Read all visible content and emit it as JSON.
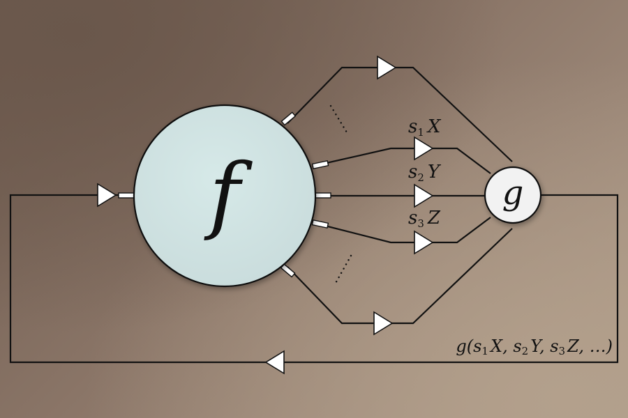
{
  "f_label": "f",
  "g_label": "g",
  "f_color": "#d1e5e5",
  "g_color": "#f2f2f2",
  "outputs": [
    {
      "s": "s",
      "sub": "1",
      "var": "X"
    },
    {
      "s": "s",
      "sub": "2",
      "var": "Y"
    },
    {
      "s": "s",
      "sub": "3",
      "var": "Z"
    }
  ],
  "feedback_label": {
    "prefix": "g(",
    "args": [
      {
        "s": "s",
        "sub": "1",
        "var": "X"
      },
      {
        "s": "s",
        "sub": "2",
        "var": "Y"
      },
      {
        "s": "s",
        "sub": "3",
        "var": "Z"
      }
    ],
    "suffix": "…)"
  }
}
